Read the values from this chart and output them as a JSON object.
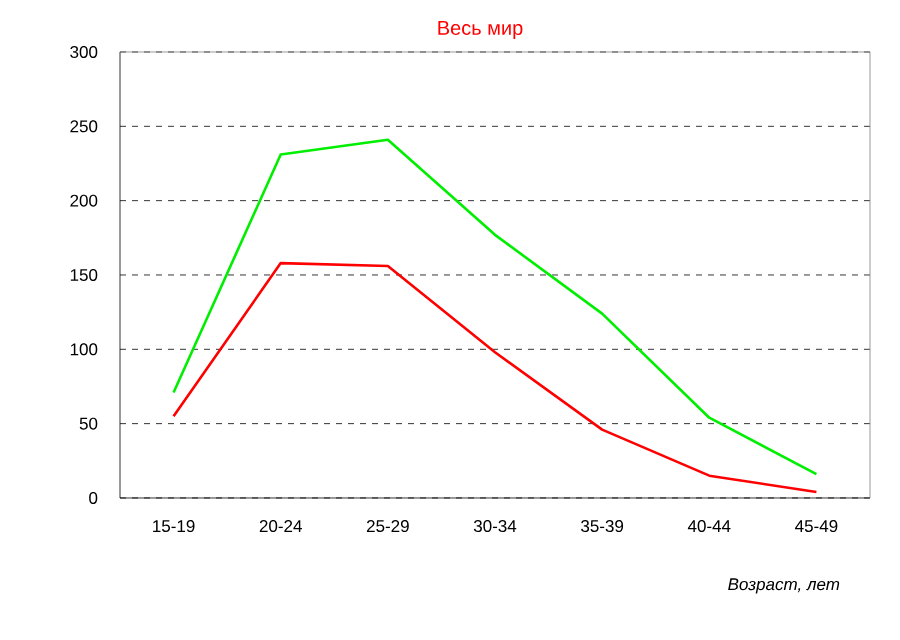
{
  "chart_data": {
    "type": "line",
    "title": "Весь мир",
    "xlabel": "Возраст, лет",
    "categories": [
      "15-19",
      "20-24",
      "25-29",
      "30-34",
      "35-39",
      "40-44",
      "45-49"
    ],
    "series": [
      {
        "color": "#00ee00",
        "values": [
          71,
          231,
          241,
          177,
          124,
          54,
          16
        ]
      },
      {
        "color": "#ff0000",
        "values": [
          55,
          158,
          156,
          98,
          46,
          15,
          4
        ]
      }
    ],
    "ylim": [
      0,
      300
    ],
    "yticks": [
      0,
      50,
      100,
      150,
      200,
      250,
      300
    ],
    "grid": "y",
    "marker": "none",
    "line_style": "solid"
  }
}
